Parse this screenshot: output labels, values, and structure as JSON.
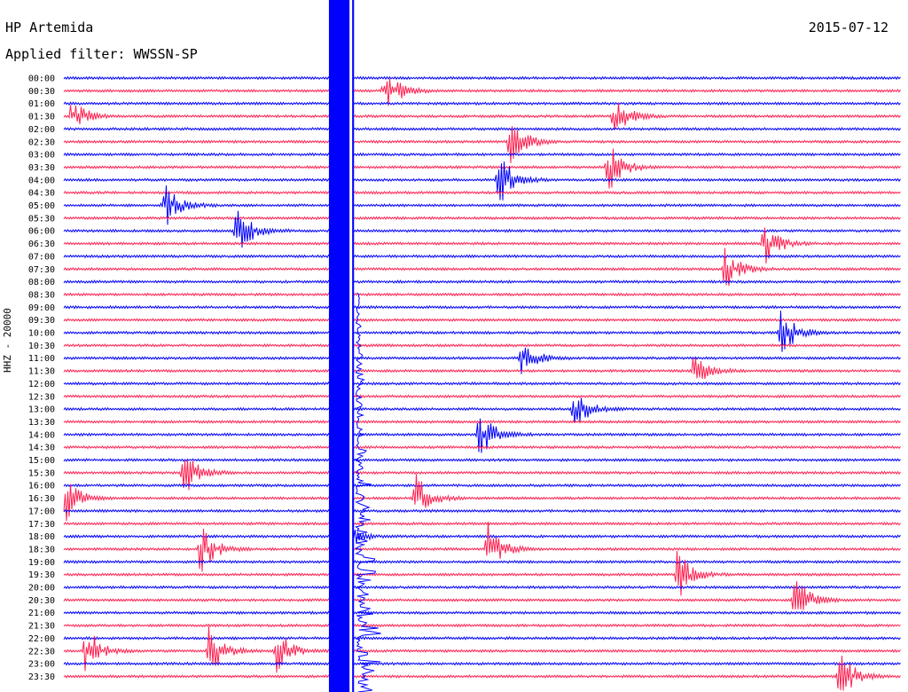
{
  "header": {
    "station": "HP Artemida",
    "date": "2015-07-12",
    "filter": "Applied filter: WWSSN-SP"
  },
  "channel_label": "HHZ - 20000",
  "colors": {
    "trace_a": "#0000ff",
    "trace_b": "#ff2050",
    "background": "#ffffff",
    "text": "#000000"
  },
  "chart_data": {
    "type": "line",
    "title": "HP Artemida",
    "subtitle": "Applied filter: WWSSN-SP",
    "ylabel": "HHZ - 20000",
    "grid": false,
    "y_tick_labels": [
      "00:00",
      "00:30",
      "01:00",
      "01:30",
      "02:00",
      "02:30",
      "03:00",
      "03:30",
      "04:00",
      "04:30",
      "05:00",
      "05:30",
      "06:00",
      "06:30",
      "07:00",
      "07:30",
      "08:00",
      "08:30",
      "09:00",
      "09:30",
      "10:00",
      "10:30",
      "11:00",
      "11:30",
      "12:00",
      "12:30",
      "13:00",
      "13:30",
      "14:00",
      "14:30",
      "15:00",
      "15:30",
      "16:00",
      "16:30",
      "17:00",
      "17:30",
      "18:00",
      "18:30",
      "19:00",
      "19:30",
      "20:00",
      "20:30",
      "21:00",
      "21:30",
      "22:00",
      "22:30",
      "23:00",
      "23:30"
    ],
    "trace_colors_alternate": [
      "blue",
      "red"
    ],
    "x_range_minutes": [
      0,
      30
    ],
    "events": [
      {
        "row": "00:30",
        "minute": 11.5,
        "amplitude": 0.9
      },
      {
        "row": "01:30",
        "minute": 0.3,
        "amplitude": 0.7
      },
      {
        "row": "01:30",
        "minute": 19.7,
        "amplitude": 0.8
      },
      {
        "row": "02:30",
        "minute": 16.0,
        "amplitude": 1.0
      },
      {
        "row": "03:30",
        "minute": 19.5,
        "amplitude": 1.0
      },
      {
        "row": "04:00",
        "minute": 15.6,
        "amplitude": 1.0
      },
      {
        "row": "05:00",
        "minute": 3.6,
        "amplitude": 0.9
      },
      {
        "row": "06:00",
        "minute": 6.2,
        "amplitude": 1.0
      },
      {
        "row": "06:30",
        "minute": 25.1,
        "amplitude": 0.9
      },
      {
        "row": "07:30",
        "minute": 23.7,
        "amplitude": 0.8
      },
      {
        "row": "10:00",
        "minute": 25.7,
        "amplitude": 1.0
      },
      {
        "row": "11:00",
        "minute": 16.4,
        "amplitude": 0.7
      },
      {
        "row": "11:30",
        "minute": 22.6,
        "amplitude": 0.7
      },
      {
        "row": "13:00",
        "minute": 18.3,
        "amplitude": 0.9
      },
      {
        "row": "14:00",
        "minute": 14.9,
        "amplitude": 1.0
      },
      {
        "row": "15:30",
        "minute": 4.3,
        "amplitude": 0.9
      },
      {
        "row": "16:30",
        "minute": 0.0,
        "amplitude": 1.0
      },
      {
        "row": "16:30",
        "minute": 12.6,
        "amplitude": 1.0
      },
      {
        "row": "18:00",
        "minute": 10.0,
        "amplitude": 0.8
      },
      {
        "row": "18:30",
        "minute": 4.9,
        "amplitude": 1.0
      },
      {
        "row": "18:30",
        "minute": 15.2,
        "amplitude": 1.0
      },
      {
        "row": "19:30",
        "minute": 22.0,
        "amplitude": 1.0
      },
      {
        "row": "20:30",
        "minute": 26.2,
        "amplitude": 1.0
      },
      {
        "row": "22:30",
        "minute": 0.8,
        "amplitude": 1.0
      },
      {
        "row": "22:30",
        "minute": 5.2,
        "amplitude": 0.9
      },
      {
        "row": "22:30",
        "minute": 7.6,
        "amplitude": 0.9
      },
      {
        "row": "23:30",
        "minute": 27.8,
        "amplitude": 1.0
      }
    ],
    "saturated_band_minutes": [
      9.5,
      10.4
    ]
  }
}
